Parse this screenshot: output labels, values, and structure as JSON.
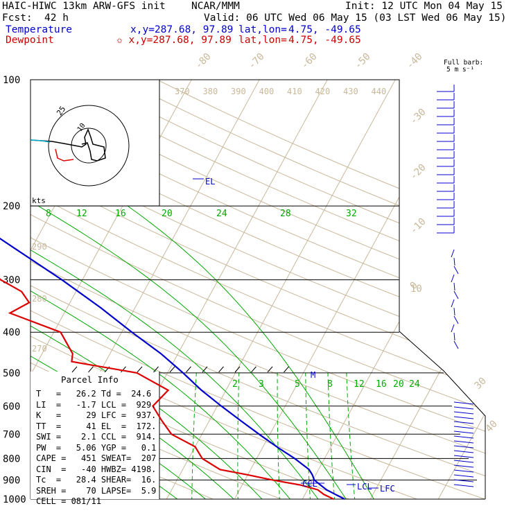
{
  "header": {
    "model_title": "HAIC-HIWC 13km ARW-GFS init",
    "org": "NCAR/MMM",
    "init": "Init: 12 UTC Mon 04 May 15",
    "fcst_label": "Fcst:",
    "fcst_value": "42 h",
    "valid": "Valid: 06 UTC Wed 06 May 15 (03 LST Wed 06 May 15)",
    "temp_label": "Temperature",
    "dew_label": "Dewpoint",
    "temp_xy": "x,y=287.68, 97.89",
    "dew_xy": "✩ x,y=287.68, 97.89",
    "temp_latlon_label": "lat,lon=",
    "temp_latlon": "4.75, -49.65",
    "dew_latlon_label": "lat,lon=",
    "dew_latlon": "4.75, -49.65"
  },
  "barb_legend": {
    "line1": "Full barb:",
    "line2": "5 m s⁻¹"
  },
  "parcel_info": {
    "title": "Parcel Info",
    "rows": [
      "T   =   26.2 Td =  24.6",
      "LI  =   -1.7 LCL =  929.",
      "K   =     29 LFC =  937.",
      "TT  =     41 EL  =  172.",
      "SWI =    2.1 CCL =  914.",
      "PW  =   5.06 YGP =   0.1",
      "CAPE =   451 SWEAT=  207",
      "CIN  =   -40 HWBZ= 4198.",
      "Tc  =   28.4 SHEAR=  16.",
      "SREH =    70 LAPSE=  5.9",
      "CELL = 081/11"
    ]
  },
  "colors": {
    "temperature": "#0000cc",
    "dewpoint": "#dd0000",
    "isotherm": "#c8b89a",
    "mixing": "#00aa00",
    "moist": "#00aa00"
  },
  "chart_data": {
    "type": "line",
    "title": "",
    "pressure_axis": {
      "levels": [
        100,
        200,
        300,
        400,
        500,
        600,
        700,
        800,
        900,
        1000
      ],
      "scale": "log"
    },
    "isotherm_labels": [
      "-80",
      "-70",
      "-60",
      "-50",
      "-40",
      "-30",
      "-20",
      "-10",
      "0",
      "10",
      "20",
      "30",
      "40"
    ],
    "theta_labels": [
      "370",
      "380",
      "390",
      "400",
      "410",
      "420",
      "430",
      "440"
    ],
    "theta_low_labels": [
      "290",
      "280",
      "270"
    ],
    "theta_e_labels": [
      "8",
      "12",
      "16",
      "20",
      "24",
      "28",
      "32"
    ],
    "mixing_ratio_labels": [
      "2",
      "3",
      "5",
      "8",
      "12",
      "16",
      "20",
      "24"
    ],
    "hodograph": {
      "rings_kts": [
        "10",
        "25"
      ],
      "units": "kts"
    },
    "series": [
      {
        "name": "Temperature",
        "pressure": [
          1000,
          975,
          950,
          925,
          900,
          875,
          850,
          800,
          750,
          700,
          650,
          600,
          550,
          500,
          450,
          400,
          350,
          300,
          250,
          220,
          200,
          172,
          150,
          125,
          110,
          100
        ],
        "values": [
          26.2,
          24.5,
          22.8,
          21.5,
          20.2,
          19.5,
          18.6,
          15.6,
          12.0,
          8.4,
          4.6,
          0.6,
          -3.6,
          -7.7,
          -12.5,
          -18.5,
          -25.0,
          -33.0,
          -43.0,
          -50.0,
          -55.0,
          -62.0,
          -68.0,
          -75.0,
          -79.0,
          -80.0
        ]
      },
      {
        "name": "Dewpoint",
        "pressure": [
          1000,
          975,
          950,
          925,
          900,
          875,
          850,
          800,
          750,
          700,
          650,
          600,
          550,
          500,
          470,
          450,
          400,
          360,
          340,
          320,
          300,
          270,
          240,
          220,
          200,
          170,
          150,
          130,
          115,
          100
        ],
        "values": [
          24.6,
          22.8,
          21.5,
          18.5,
          14.0,
          10.0,
          5.5,
          2.0,
          0.0,
          -4.5,
          -7.0,
          -9.5,
          -8.5,
          -14.5,
          -25.0,
          -25.5,
          -29.0,
          -38.0,
          -36.0,
          -38.0,
          -42.0,
          -47.0,
          -52.0,
          -57.0,
          -65.0,
          -77.0,
          -89.0,
          -89.0,
          -83.0,
          -80.0
        ]
      }
    ],
    "annotations": [
      {
        "text": "EL",
        "pressure": 172
      },
      {
        "text": "M",
        "pressure": 500
      },
      {
        "text": "CCL",
        "pressure": 914
      },
      {
        "text": "LCL",
        "pressure": 929
      },
      {
        "text": "LFC",
        "pressure": 937
      }
    ]
  }
}
